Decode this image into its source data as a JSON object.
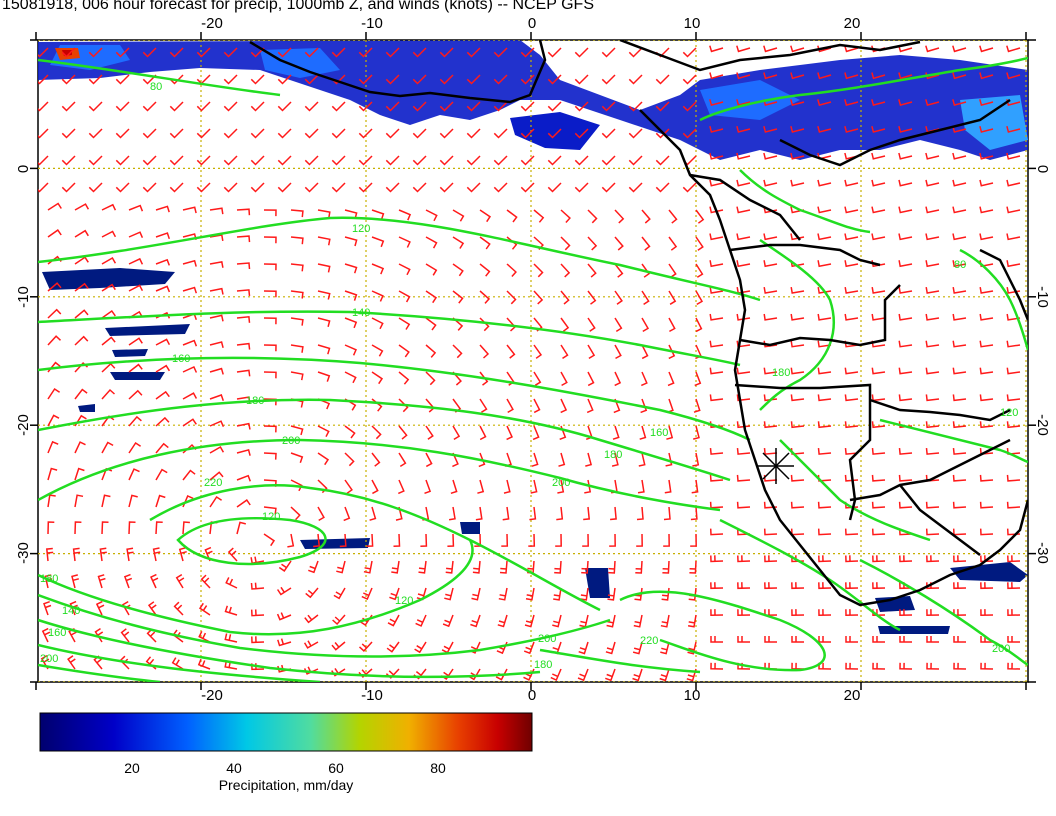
{
  "title": "15081918, 006 hour forecast for precip, 1000mb Z, and winds (knots) -- NCEP GFS",
  "map": {
    "lon_range": [
      -30,
      30
    ],
    "lat_range": [
      -40,
      10
    ],
    "lon_ticks": [
      "-20",
      "-10",
      "0",
      "10",
      "20"
    ],
    "lat_ticks": [
      "0",
      "-10",
      "-20",
      "-30"
    ],
    "grid": true,
    "contour_color": "#22dd22",
    "barb_color": "#ff1a1a",
    "coast_color": "#000000",
    "marker": "station-star",
    "contour_labels": [
      "120",
      "140",
      "160",
      "180",
      "200",
      "220",
      "180",
      "200",
      "160",
      "140",
      "120",
      "80",
      "120",
      "180",
      "200",
      "220",
      "200",
      "180",
      "160",
      "80",
      "180",
      "200",
      "120"
    ]
  },
  "colorbar": {
    "ticks": [
      "20",
      "40",
      "60",
      "80"
    ],
    "label": "Precipitation, mm/day",
    "min": 0,
    "max": 97
  }
}
